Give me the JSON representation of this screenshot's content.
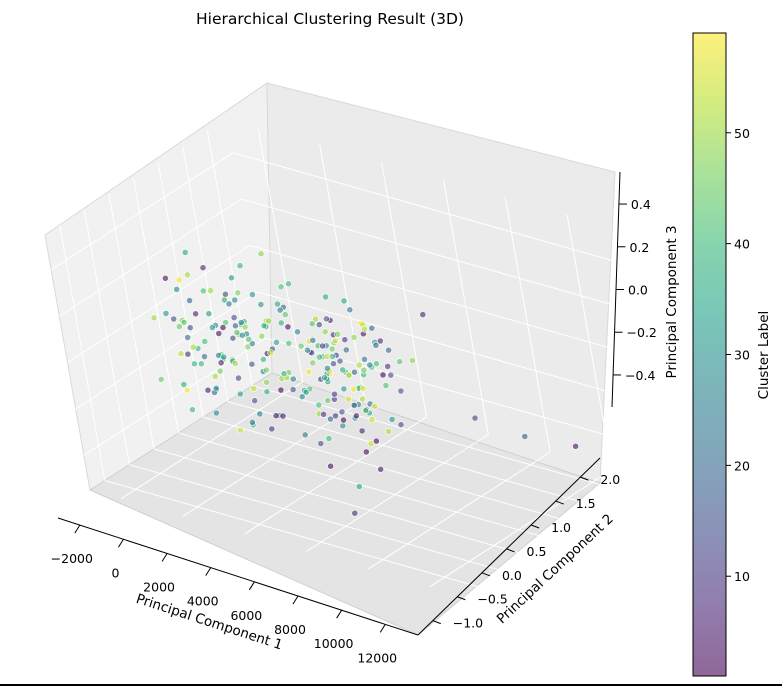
{
  "chart_data": {
    "type": "scatter",
    "projection": "3d",
    "title": "Hierarchical Clustering Result (3D)",
    "xlabel": "Principal Component 1",
    "ylabel": "Principal Component 2",
    "zlabel": "Principal Component 3",
    "xlim": [
      -3000,
      13500
    ],
    "ylim": [
      -1.3,
      2.4
    ],
    "zlim": [
      -0.55,
      0.55
    ],
    "x_ticks": [
      -2000,
      0,
      2000,
      4000,
      6000,
      8000,
      10000,
      12000
    ],
    "x_tick_labels": [
      "−2000",
      "0",
      "2000",
      "4000",
      "6000",
      "8000",
      "10000",
      "12000"
    ],
    "y_ticks": [
      -1.0,
      -0.5,
      0.0,
      0.5,
      1.0,
      1.5,
      2.0
    ],
    "y_tick_labels": [
      "−1.0",
      "−0.5",
      "0.0",
      "0.5",
      "1.0",
      "1.5",
      "2.0"
    ],
    "z_ticks": [
      -0.4,
      -0.2,
      0.0,
      0.2,
      0.4
    ],
    "z_tick_labels": [
      "−0.4",
      "−0.2",
      "0.0",
      "0.2",
      "0.4"
    ],
    "grid": true,
    "colormap": "viridis",
    "marker_alpha": 0.6,
    "colorbar": {
      "label": "Cluster Label",
      "range": [
        1,
        59
      ],
      "ticks": [
        10,
        20,
        30,
        40,
        50
      ],
      "tick_labels": [
        "10",
        "20",
        "30",
        "40",
        "50"
      ]
    },
    "points": [
      {
        "x": 700,
        "y": 0.6,
        "z": 0.35,
        "c": 48
      },
      {
        "x": 12100,
        "y": 0.9,
        "z": -0.2,
        "c": 4
      },
      {
        "x": 9700,
        "y": 0.9,
        "z": -0.18,
        "c": 3
      },
      {
        "x": 4600,
        "y": 0.0,
        "z": -0.35,
        "c": 4
      },
      {
        "x": 7000,
        "y": 0.6,
        "z": -0.12,
        "c": 12
      },
      {
        "x": 8400,
        "y": 0.7,
        "z": -0.16,
        "c": 16
      },
      {
        "x": 5100,
        "y": 1.0,
        "z": 0.2,
        "c": 6
      },
      {
        "x": 3400,
        "y": 0.2,
        "z": 0.22,
        "c": 5
      },
      {
        "x": -2200,
        "y": 0.5,
        "z": 0.1,
        "c": 28
      },
      {
        "x": -1500,
        "y": 0.4,
        "z": 0.3,
        "c": 35
      },
      {
        "x": 3800,
        "y": 0.0,
        "z": 0.2,
        "c": 8
      },
      {
        "x": 4200,
        "y": -0.4,
        "z": -0.5,
        "c": 7
      },
      {
        "x": 3000,
        "y": -1.0,
        "z": -0.1,
        "c": 9
      }
    ],
    "cloud_seed": 7,
    "cloud_count": 230
  }
}
